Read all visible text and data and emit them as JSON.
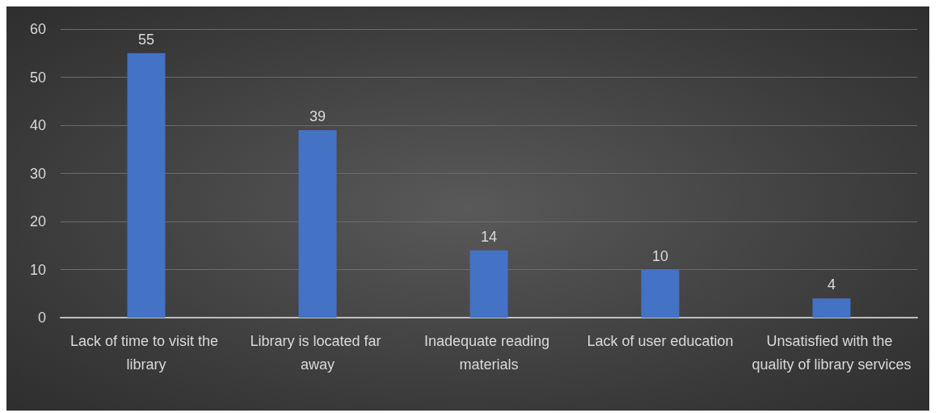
{
  "chart_data": {
    "type": "bar",
    "categories": [
      "Lack of time to visit the library",
      "Library is located far away",
      "Inadequate reading materials",
      "Lack of user education",
      "Unsatisfied with the quality of library services"
    ],
    "values": [
      55,
      39,
      14,
      10,
      4
    ],
    "color": "#4472c4",
    "ylim": [
      0,
      60
    ],
    "yticks": [
      0,
      10,
      20,
      30,
      40,
      50,
      60
    ],
    "grid": "y",
    "data_labels": true
  }
}
